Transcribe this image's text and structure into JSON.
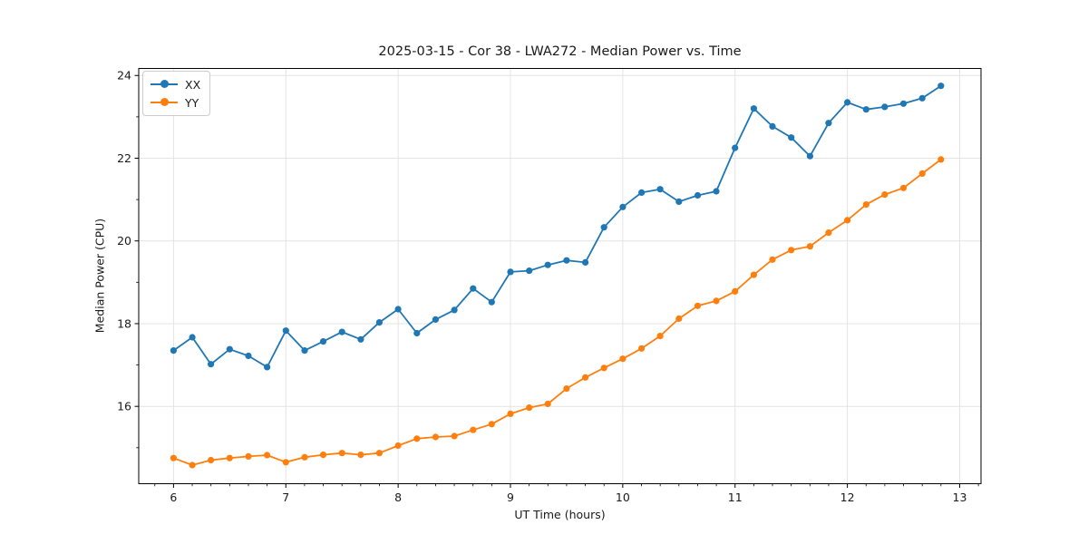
{
  "chart_data": {
    "type": "line",
    "title": "2025-03-15 - Cor 38 - LWA272 - Median Power vs. Time",
    "xlabel": "UT Time (hours)",
    "ylabel": "Median Power (CPU)",
    "xlim": [
      5.69,
      13.19
    ],
    "ylim": [
      14.13,
      24.17
    ],
    "x_ticks": [
      6,
      7,
      8,
      9,
      10,
      11,
      12,
      13
    ],
    "y_ticks": [
      16,
      18,
      20,
      22,
      24
    ],
    "x_minor_interval_hours": 0.1667,
    "y_minor_interval": 1,
    "grid": true,
    "grid_color": "#e4e4e4",
    "axes_color": "#000000",
    "text_color": "#1a1a1a",
    "legend_position": "upper-left",
    "x": [
      6.0,
      6.167,
      6.333,
      6.5,
      6.667,
      6.833,
      7.0,
      7.167,
      7.333,
      7.5,
      7.667,
      7.833,
      8.0,
      8.167,
      8.333,
      8.5,
      8.667,
      8.833,
      9.0,
      9.167,
      9.333,
      9.5,
      9.667,
      9.833,
      10.0,
      10.167,
      10.333,
      10.5,
      10.667,
      10.833,
      11.0,
      11.167,
      11.333,
      11.5,
      11.667,
      11.833,
      12.0,
      12.167,
      12.333,
      12.5,
      12.667,
      12.833
    ],
    "series": [
      {
        "name": "XX",
        "color": "#1f77b4",
        "values": [
          17.35,
          17.67,
          17.02,
          17.38,
          17.22,
          16.95,
          17.83,
          17.35,
          17.57,
          17.8,
          17.62,
          18.03,
          18.35,
          17.77,
          18.1,
          18.33,
          18.85,
          18.52,
          19.25,
          19.28,
          19.42,
          19.53,
          19.48,
          20.33,
          20.82,
          21.17,
          21.25,
          20.95,
          21.1,
          21.2,
          22.25,
          23.2,
          22.77,
          22.5,
          22.05,
          22.85,
          23.35,
          23.18,
          23.24,
          23.32,
          23.45,
          23.75
        ]
      },
      {
        "name": "YY",
        "color": "#ff7f0e",
        "values": [
          14.75,
          14.58,
          14.7,
          14.75,
          14.79,
          14.82,
          14.65,
          14.77,
          14.83,
          14.87,
          14.83,
          14.87,
          15.05,
          15.22,
          15.26,
          15.28,
          15.43,
          15.57,
          15.82,
          15.97,
          16.06,
          16.43,
          16.7,
          16.93,
          17.15,
          17.4,
          17.7,
          18.12,
          18.43,
          18.55,
          18.78,
          19.18,
          19.55,
          19.78,
          19.87,
          20.2,
          20.5,
          20.88,
          21.12,
          21.28,
          21.63,
          21.97
        ]
      }
    ]
  }
}
